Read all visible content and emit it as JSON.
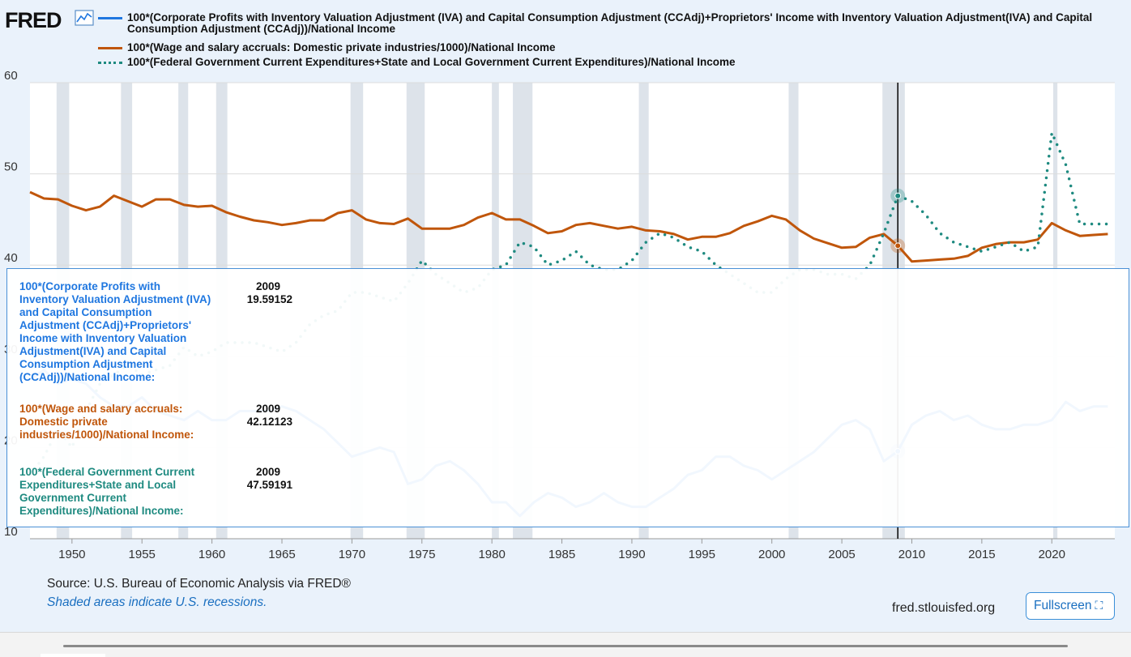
{
  "logo": {
    "text": "FRED"
  },
  "colors": {
    "series1": "#1f77e0",
    "series2": "#c0560b",
    "series3": "#1e8a80",
    "recession": "#dde3ea"
  },
  "legend": [
    {
      "label": "100*(Corporate Profits with Inventory Valuation Adjustment (IVA) and Capital Consumption Adjustment (CCAdj)+Proprietors' Income with Inventory Valuation Adjustment(IVA) and Capital Consumption Adjustment (CCAdj))/National Income",
      "style": "solid"
    },
    {
      "label": "100*(Wage and salary accruals: Domestic private industries/1000)/National Income",
      "style": "solid"
    },
    {
      "label": "100*(Federal Government Current Expenditures+State and Local Government Current Expenditures)/National Income",
      "style": "dotted"
    }
  ],
  "chart_data": {
    "type": "line",
    "title": "",
    "xlabel": "",
    "ylabel": "",
    "xlim": [
      1947,
      2024.5
    ],
    "ylim": [
      10,
      60
    ],
    "y_ticks": [
      10,
      20,
      30,
      40,
      50,
      60
    ],
    "x_ticks": [
      1950,
      1955,
      1960,
      1965,
      1970,
      1975,
      1980,
      1985,
      1990,
      1995,
      2000,
      2005,
      2010,
      2015,
      2020
    ],
    "recessions": [
      [
        1948.9,
        1949.8
      ],
      [
        1953.5,
        1954.3
      ],
      [
        1957.6,
        1958.3
      ],
      [
        1960.3,
        1961.1
      ],
      [
        1969.9,
        1970.8
      ],
      [
        1973.9,
        1975.2
      ],
      [
        1980.0,
        1980.5
      ],
      [
        1981.5,
        1982.9
      ],
      [
        1990.5,
        1991.2
      ],
      [
        2001.2,
        2001.9
      ],
      [
        2007.9,
        2009.5
      ],
      [
        2020.1,
        2020.4
      ]
    ],
    "hover_year": 2009,
    "series": [
      {
        "name": "100*(Corporate Profits with Inventory Valuation Adjustment (IVA) and Capital Consumption Adjustment (CCAdj)+Proprietors' Income with Inventory Valuation Adjustment(IVA) and Capital Consumption Adjustment (CCAdj))/National Income",
        "style": "solid",
        "x": [
          1947,
          1948,
          1949,
          1950,
          1951,
          1952,
          1953,
          1954,
          1955,
          1956,
          1957,
          1958,
          1959,
          1960,
          1961,
          1962,
          1963,
          1964,
          1965,
          1966,
          1967,
          1968,
          1969,
          1970,
          1971,
          1972,
          1973,
          1974,
          1975,
          1976,
          1977,
          1978,
          1979,
          1980,
          1981,
          1982,
          1983,
          1984,
          1985,
          1986,
          1987,
          1988,
          1989,
          1990,
          1991,
          1992,
          1993,
          1994,
          1995,
          1996,
          1997,
          1998,
          1999,
          2000,
          2001,
          2002,
          2003,
          2004,
          2005,
          2006,
          2007,
          2008,
          2009,
          2010,
          2011,
          2012,
          2013,
          2014,
          2015,
          2016,
          2017,
          2018,
          2019,
          2020,
          2021,
          2022,
          2023,
          2024
        ],
        "values": [
          27.5,
          28.5,
          27.0,
          27.5,
          27.0,
          25.5,
          24.5,
          24.5,
          25.5,
          24.0,
          23.5,
          23.0,
          24.0,
          23.0,
          23.0,
          24.0,
          24.0,
          24.0,
          24.5,
          24.0,
          23.0,
          22.0,
          20.5,
          19.0,
          19.5,
          20.0,
          19.5,
          16.0,
          16.5,
          18.0,
          18.5,
          17.5,
          16.0,
          14.0,
          14.0,
          12.5,
          14.0,
          15.0,
          14.5,
          13.5,
          14.0,
          15.0,
          14.0,
          13.5,
          13.5,
          14.5,
          15.5,
          17.0,
          17.5,
          19.0,
          19.0,
          18.0,
          17.5,
          16.5,
          17.5,
          18.5,
          19.5,
          21.0,
          22.5,
          23.0,
          22.0,
          18.5,
          19.59152,
          22.5,
          23.5,
          24.0,
          23.0,
          23.5,
          22.5,
          22.0,
          22.0,
          22.5,
          22.5,
          23.0,
          25.0,
          24.0,
          24.5,
          24.5
        ]
      },
      {
        "name": "100*(Wage and salary accruals: Domestic private industries/1000)/National Income",
        "style": "solid",
        "x": [
          1947,
          1948,
          1949,
          1950,
          1951,
          1952,
          1953,
          1954,
          1955,
          1956,
          1957,
          1958,
          1959,
          1960,
          1961,
          1962,
          1963,
          1964,
          1965,
          1966,
          1967,
          1968,
          1969,
          1970,
          1971,
          1972,
          1973,
          1974,
          1975,
          1976,
          1977,
          1978,
          1979,
          1980,
          1981,
          1982,
          1983,
          1984,
          1985,
          1986,
          1987,
          1988,
          1989,
          1990,
          1991,
          1992,
          1993,
          1994,
          1995,
          1996,
          1997,
          1998,
          1999,
          2000,
          2001,
          2002,
          2003,
          2004,
          2005,
          2006,
          2007,
          2008,
          2009,
          2010,
          2011,
          2012,
          2013,
          2014,
          2015,
          2016,
          2017,
          2018,
          2019,
          2020,
          2021,
          2022,
          2023,
          2024
        ],
        "values": [
          48.0,
          47.3,
          47.2,
          46.5,
          46.0,
          46.4,
          47.6,
          47.0,
          46.4,
          47.2,
          47.2,
          46.6,
          46.4,
          46.5,
          45.8,
          45.3,
          44.9,
          44.7,
          44.4,
          44.6,
          44.9,
          44.9,
          45.7,
          46.0,
          45.0,
          44.6,
          44.5,
          45.1,
          44.0,
          44.0,
          44.0,
          44.4,
          45.2,
          45.7,
          45.0,
          45.0,
          44.3,
          43.5,
          43.7,
          44.4,
          44.6,
          44.3,
          44.0,
          44.2,
          43.8,
          43.7,
          43.4,
          42.8,
          43.1,
          43.1,
          43.5,
          44.3,
          44.8,
          45.4,
          45.0,
          43.8,
          42.9,
          42.4,
          41.9,
          42.0,
          43.0,
          43.4,
          42.12123,
          40.4,
          40.5,
          40.6,
          40.7,
          41.0,
          41.9,
          42.3,
          42.5,
          42.5,
          42.8,
          44.6,
          43.8,
          43.2,
          43.3,
          43.4
        ]
      },
      {
        "name": "100*(Federal Government Current Expenditures+State and Local Government Current Expenditures)/National Income",
        "style": "dotted",
        "x": [
          1947,
          1948,
          1949,
          1950,
          1951,
          1952,
          1953,
          1954,
          1955,
          1956,
          1957,
          1958,
          1959,
          1960,
          1961,
          1962,
          1963,
          1964,
          1965,
          1966,
          1967,
          1968,
          1969,
          1970,
          1971,
          1972,
          1973,
          1974,
          1975,
          1976,
          1977,
          1978,
          1979,
          1980,
          1981,
          1982,
          1983,
          1984,
          1985,
          1986,
          1987,
          1988,
          1989,
          1990,
          1991,
          1992,
          1993,
          1994,
          1995,
          1996,
          1997,
          1998,
          1999,
          2000,
          2001,
          2002,
          2003,
          2004,
          2005,
          2006,
          2007,
          2008,
          2009,
          2010,
          2011,
          2012,
          2013,
          2014,
          2015,
          2016,
          2017,
          2018,
          2019,
          2020,
          2021,
          2022,
          2023,
          2024
        ],
        "values": [
          17.0,
          19.0,
          22.0,
          20.0,
          24.0,
          27.0,
          28.0,
          29.0,
          28.0,
          28.5,
          29.0,
          31.0,
          30.0,
          30.5,
          31.5,
          31.5,
          31.5,
          31.0,
          30.5,
          31.5,
          33.5,
          34.5,
          35.0,
          37.0,
          37.0,
          36.5,
          36.0,
          38.0,
          40.5,
          39.0,
          38.0,
          37.0,
          37.5,
          39.5,
          40.0,
          42.5,
          42.0,
          40.0,
          40.5,
          41.5,
          40.0,
          39.5,
          39.5,
          40.5,
          42.5,
          43.5,
          43.0,
          42.0,
          41.5,
          40.0,
          39.0,
          38.0,
          37.0,
          37.0,
          38.5,
          39.5,
          39.5,
          39.0,
          39.0,
          38.5,
          40.0,
          43.5,
          47.59191,
          47.0,
          45.5,
          43.5,
          42.5,
          42.0,
          41.5,
          42.0,
          42.5,
          41.5,
          42.0,
          54.5,
          51.0,
          44.5,
          44.5,
          44.5
        ]
      }
    ]
  },
  "tooltip": {
    "rows": [
      {
        "name": "100*(Corporate Profits with Inventory Valuation Adjustment (IVA) and Capital Consumption Adjustment (CCAdj)+Proprietors' Income with Inventory Valuation Adjustment(IVA) and Capital Consumption Adjustment (CCAdj))/National Income:",
        "date": "2009",
        "value": "19.59152"
      },
      {
        "name": "100*(Wage and salary accruals: Domestic private industries/1000)/National Income:",
        "date": "2009",
        "value": "42.12123"
      },
      {
        "name": "100*(Federal Government Current Expenditures+State and Local Government Current Expenditures)/National Income:",
        "date": "2009",
        "value": "47.59191"
      }
    ]
  },
  "footer": {
    "source": "Source: U.S. Bureau of Economic Analysis via FRED®",
    "recession_note": "Shaded areas indicate U.S. recessions.",
    "site": "fred.stlouisfed.org",
    "fullscreen_label": "Fullscreen",
    "fullscreen_icon": "expand-icon"
  }
}
